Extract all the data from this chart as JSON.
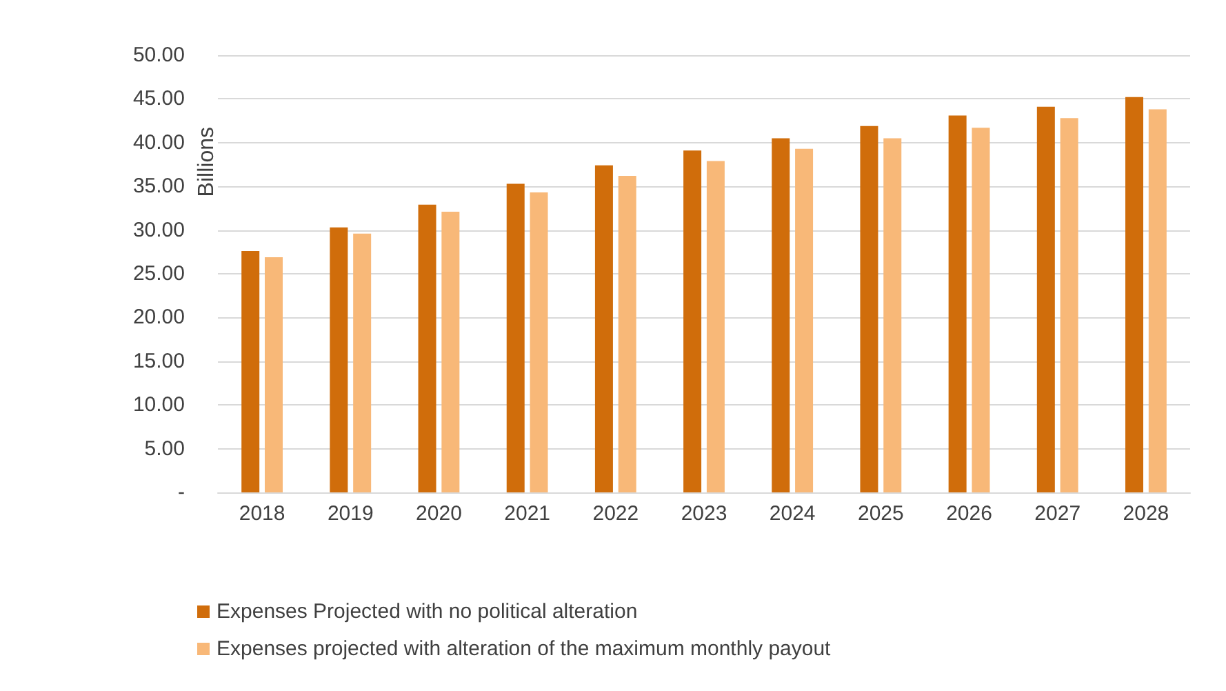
{
  "chart_data": {
    "type": "bar",
    "ylabel": "Billions",
    "categories": [
      "2018",
      "2019",
      "2020",
      "2021",
      "2022",
      "2023",
      "2024",
      "2025",
      "2026",
      "2027",
      "2028"
    ],
    "series": [
      {
        "name": "Expenses Projected with no political alteration",
        "color": "#d06d0b",
        "values": [
          27.6,
          30.3,
          32.9,
          35.3,
          37.4,
          39.1,
          40.5,
          41.9,
          43.1,
          44.1,
          45.2
        ]
      },
      {
        "name": "Expenses projected with alteration of the maximum monthly payout",
        "color": "#f8b878",
        "values": [
          26.9,
          29.6,
          32.1,
          34.3,
          36.2,
          37.9,
          39.3,
          40.5,
          41.7,
          42.8,
          43.8
        ]
      }
    ],
    "ylim": [
      0,
      50
    ],
    "yticks": [
      {
        "value": 0,
        "label": "-"
      },
      {
        "value": 5,
        "label": "5.00"
      },
      {
        "value": 10,
        "label": "10.00"
      },
      {
        "value": 15,
        "label": "15.00"
      },
      {
        "value": 20,
        "label": "20.00"
      },
      {
        "value": 25,
        "label": "25.00"
      },
      {
        "value": 30,
        "label": "30.00"
      },
      {
        "value": 35,
        "label": "35.00"
      },
      {
        "value": 40,
        "label": "40.00"
      },
      {
        "value": 45,
        "label": "45.00"
      },
      {
        "value": 50,
        "label": "50.00"
      }
    ],
    "grid": "y",
    "legend": "bottom"
  }
}
